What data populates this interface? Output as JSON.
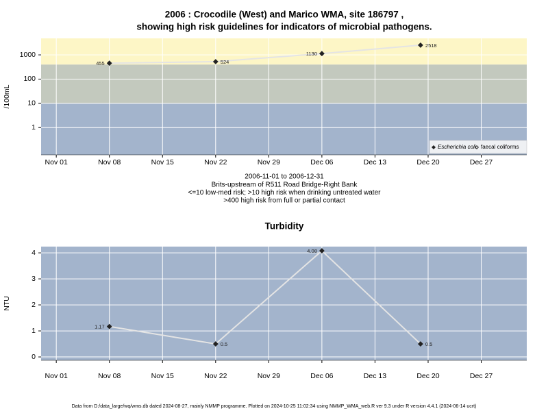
{
  "chart_data": [
    {
      "type": "line",
      "title": [
        "2006 : Crocodile (West) and Marico WMA, site 186797 ,",
        "showing high risk guidelines for indicators of microbial pathogens."
      ],
      "y_label": "/100mL",
      "x": [
        "2006-11-08",
        "2006-11-22",
        "2006-12-06",
        "2006-12-19"
      ],
      "series": [
        {
          "name": "Escherichia coli",
          "color": "#222222",
          "line_color": "#e4e4e4",
          "marker": "diamond",
          "values": [
            455,
            524,
            1130,
            2518
          ]
        },
        {
          "name": "faecal coliforms",
          "color": "#222222",
          "line_color": "#e4e4e4",
          "marker": "diamond-open",
          "values": [
            null,
            null,
            null,
            null
          ]
        }
      ],
      "log_y": true,
      "ylim": [
        0.075,
        4800
      ],
      "yticks": [
        1,
        10,
        100,
        1000
      ],
      "xlim": [
        "2006-10-30",
        "2007-01-02"
      ],
      "xticks": [
        {
          "value": "2006-11-01",
          "label": "Nov 01"
        },
        {
          "value": "2006-11-08",
          "label": "Nov 08"
        },
        {
          "value": "2006-11-15",
          "label": "Nov 15"
        },
        {
          "value": "2006-11-22",
          "label": "Nov 22"
        },
        {
          "value": "2006-11-29",
          "label": "Nov 29"
        },
        {
          "value": "2006-12-06",
          "label": "Dec 06"
        },
        {
          "value": "2006-12-13",
          "label": "Dec 13"
        },
        {
          "value": "2006-12-20",
          "label": "Dec 20"
        },
        {
          "value": "2006-12-27",
          "label": "Dec 27"
        }
      ],
      "bands": [
        {
          "to": 10,
          "color": "#a3b4cc"
        },
        {
          "from": 10,
          "to": 400,
          "color": "#c3c9be"
        },
        {
          "from": 400,
          "color": "#fdf6c6"
        }
      ],
      "grid": true,
      "legend": "bottom-right",
      "caption": [
        "2006-11-01 to 2006-12-31",
        "Brits-upstream of R511 Road Bridge-Right Bank",
        "<=10 low-med risk; >10 high risk when drinking untreated water",
        ">400 high risk from full or partial contact"
      ]
    },
    {
      "type": "line",
      "title": [
        "Turbidity"
      ],
      "y_label": "NTU",
      "x": [
        "2006-11-08",
        "2006-11-22",
        "2006-12-06",
        "2006-12-19"
      ],
      "series": [
        {
          "color": "#222222",
          "line_color": "#e4e4e4",
          "marker": "diamond",
          "values": [
            1.17,
            0.5,
            4.08,
            0.5
          ]
        }
      ],
      "log_y": false,
      "background": "#a3b4cc",
      "ylim": [
        -0.13,
        4.24
      ],
      "yticks": [
        0,
        1,
        2,
        3,
        4
      ],
      "xlim": [
        "2006-10-30",
        "2007-01-02"
      ],
      "xticks": [
        {
          "value": "2006-11-01",
          "label": "Nov 01"
        },
        {
          "value": "2006-11-08",
          "label": "Nov 08"
        },
        {
          "value": "2006-11-15",
          "label": "Nov 15"
        },
        {
          "value": "2006-11-22",
          "label": "Nov 22"
        },
        {
          "value": "2006-11-29",
          "label": "Nov 29"
        },
        {
          "value": "2006-12-06",
          "label": "Dec 06"
        },
        {
          "value": "2006-12-13",
          "label": "Dec 13"
        },
        {
          "value": "2006-12-20",
          "label": "Dec 20"
        },
        {
          "value": "2006-12-27",
          "label": "Dec 27"
        }
      ],
      "grid": true
    }
  ],
  "footnote": "Data from D:/data_large/wq/wms.db dated 2024-08-27, mainly NMMP programme. Plotted on 2024-10-25 11:02:34 using NMMP_WMA_web.R ver 9.3 under R version 4.4.1 (2024-06-14 ucrt)"
}
